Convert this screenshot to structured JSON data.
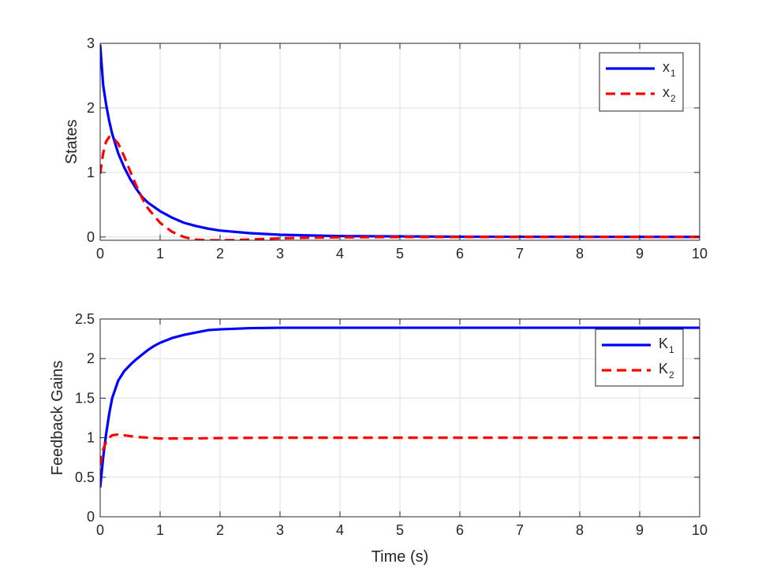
{
  "chart_data": [
    {
      "type": "line",
      "xlabel": "",
      "ylabel": "States",
      "xlim": [
        0,
        10
      ],
      "ylim": [
        -0.05,
        3
      ],
      "xticks": [
        "0",
        "1",
        "2",
        "3",
        "4",
        "5",
        "6",
        "7",
        "8",
        "9",
        "10"
      ],
      "yticks": [
        "0",
        "1",
        "2",
        "3"
      ],
      "grid": true,
      "legend_position": "top-right",
      "series": [
        {
          "name": "x",
          "subscript": "1",
          "color": "#0000ff",
          "style": "solid",
          "points": [
            [
              0,
              2.98
            ],
            [
              0.05,
              2.35
            ],
            [
              0.1,
              2.05
            ],
            [
              0.15,
              1.8
            ],
            [
              0.2,
              1.6
            ],
            [
              0.3,
              1.3
            ],
            [
              0.4,
              1.08
            ],
            [
              0.5,
              0.9
            ],
            [
              0.6,
              0.75
            ],
            [
              0.7,
              0.62
            ],
            [
              0.8,
              0.53
            ],
            [
              1.0,
              0.4
            ],
            [
              1.2,
              0.3
            ],
            [
              1.4,
              0.22
            ],
            [
              1.6,
              0.17
            ],
            [
              1.8,
              0.13
            ],
            [
              2.0,
              0.1
            ],
            [
              2.5,
              0.06
            ],
            [
              3.0,
              0.035
            ],
            [
              3.5,
              0.025
            ],
            [
              4.0,
              0.015
            ],
            [
              5.0,
              0.01
            ],
            [
              6.0,
              0.005
            ],
            [
              8.0,
              0.003
            ],
            [
              10.0,
              0.002
            ]
          ]
        },
        {
          "name": "x",
          "subscript": "2",
          "color": "#ff0000",
          "style": "dashed",
          "points": [
            [
              0,
              0.98
            ],
            [
              0.05,
              1.3
            ],
            [
              0.1,
              1.48
            ],
            [
              0.15,
              1.55
            ],
            [
              0.2,
              1.55
            ],
            [
              0.3,
              1.45
            ],
            [
              0.4,
              1.25
            ],
            [
              0.5,
              1.02
            ],
            [
              0.6,
              0.8
            ],
            [
              0.7,
              0.6
            ],
            [
              0.8,
              0.44
            ],
            [
              1.0,
              0.22
            ],
            [
              1.2,
              0.08
            ],
            [
              1.4,
              0.0
            ],
            [
              1.6,
              -0.04
            ],
            [
              1.8,
              -0.05
            ],
            [
              2.0,
              -0.05
            ],
            [
              2.3,
              -0.045
            ],
            [
              2.6,
              -0.035
            ],
            [
              3.0,
              -0.02
            ],
            [
              3.5,
              -0.01
            ],
            [
              4.0,
              -0.005
            ],
            [
              5.0,
              0.0
            ],
            [
              10.0,
              0.0
            ]
          ]
        }
      ]
    },
    {
      "type": "line",
      "xlabel": "Time (s)",
      "ylabel": "Feedback Gains",
      "xlim": [
        0,
        10
      ],
      "ylim": [
        0,
        2.5
      ],
      "xticks": [
        "0",
        "1",
        "2",
        "3",
        "4",
        "5",
        "6",
        "7",
        "8",
        "9",
        "10"
      ],
      "yticks": [
        "0",
        "0.5",
        "1",
        "1.5",
        "2",
        "2.5"
      ],
      "grid": true,
      "legend_position": "top-right",
      "series": [
        {
          "name": "K",
          "subscript": "1",
          "color": "#0000ff",
          "style": "solid",
          "points": [
            [
              0,
              0.37
            ],
            [
              0.05,
              0.75
            ],
            [
              0.1,
              1.05
            ],
            [
              0.15,
              1.3
            ],
            [
              0.2,
              1.5
            ],
            [
              0.3,
              1.72
            ],
            [
              0.4,
              1.84
            ],
            [
              0.5,
              1.92
            ],
            [
              0.6,
              1.99
            ],
            [
              0.7,
              2.05
            ],
            [
              0.8,
              2.11
            ],
            [
              0.9,
              2.16
            ],
            [
              1.0,
              2.2
            ],
            [
              1.2,
              2.26
            ],
            [
              1.4,
              2.3
            ],
            [
              1.6,
              2.33
            ],
            [
              1.8,
              2.36
            ],
            [
              2.0,
              2.37
            ],
            [
              2.5,
              2.385
            ],
            [
              3.0,
              2.39
            ],
            [
              4.0,
              2.39
            ],
            [
              10.0,
              2.39
            ]
          ]
        },
        {
          "name": "K",
          "subscript": "2",
          "color": "#ff0000",
          "style": "dashed",
          "points": [
            [
              0,
              0.65
            ],
            [
              0.05,
              0.85
            ],
            [
              0.1,
              0.95
            ],
            [
              0.15,
              1.0
            ],
            [
              0.2,
              1.03
            ],
            [
              0.3,
              1.04
            ],
            [
              0.4,
              1.03
            ],
            [
              0.5,
              1.02
            ],
            [
              0.6,
              1.01
            ],
            [
              0.8,
              1.0
            ],
            [
              1.0,
              0.99
            ],
            [
              1.5,
              0.99
            ],
            [
              2.0,
              0.995
            ],
            [
              3.0,
              1.0
            ],
            [
              10.0,
              1.0
            ]
          ]
        }
      ]
    }
  ]
}
